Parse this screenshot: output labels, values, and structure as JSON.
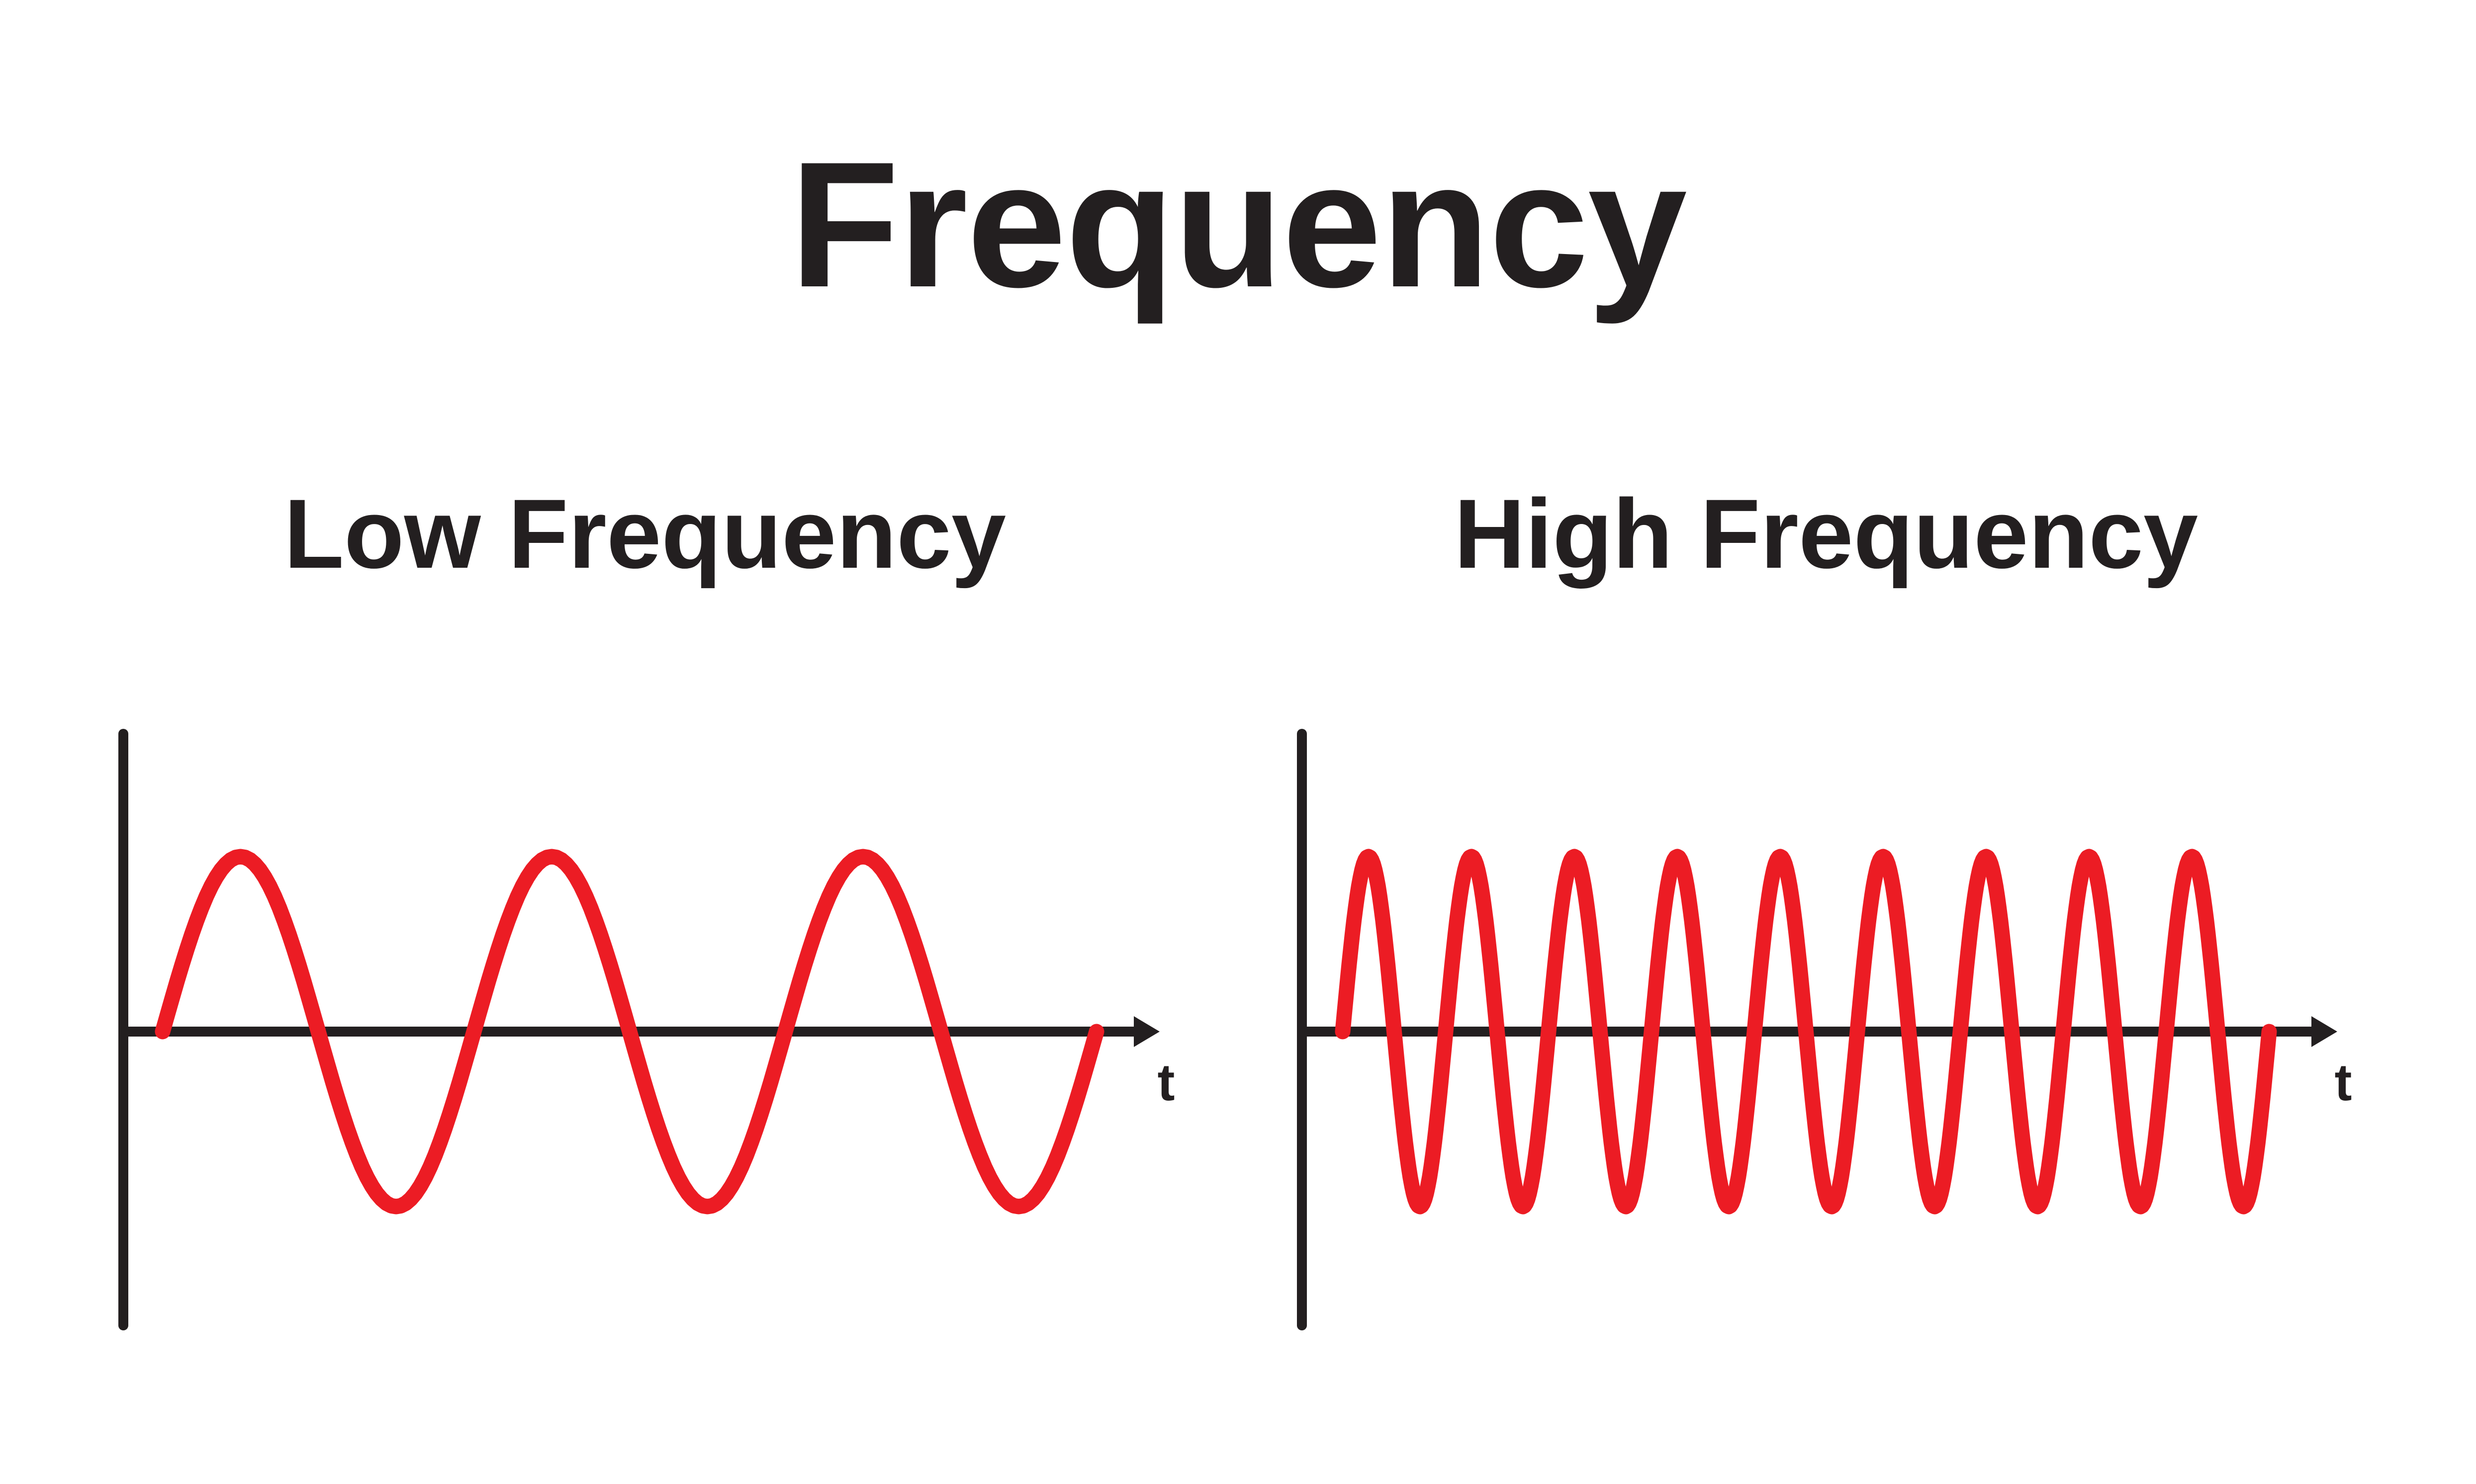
{
  "title": "Frequency",
  "colors": {
    "ink": "#231f20",
    "wave": "#ec1c24",
    "background": "#ffffff"
  },
  "panels": [
    {
      "id": "low",
      "label": "Low Frequency",
      "axis_label": "t",
      "cycles": 3
    },
    {
      "id": "high",
      "label": "High Frequency",
      "axis_label": "t",
      "cycles": 9
    }
  ],
  "chart_data": [
    {
      "type": "line",
      "title": "Low Frequency",
      "xlabel": "t",
      "ylabel": "",
      "grid": false,
      "series": [
        {
          "name": "low-frequency sine wave",
          "function": "sin",
          "cycles": 3,
          "amplitude": 1,
          "phase_start": 0,
          "starts_at_zero_rising": true,
          "ends_at_zero": true
        }
      ]
    },
    {
      "type": "line",
      "title": "High Frequency",
      "xlabel": "t",
      "ylabel": "",
      "grid": false,
      "series": [
        {
          "name": "high-frequency sine wave",
          "function": "sin",
          "cycles": 9,
          "amplitude": 1,
          "phase_start": 0,
          "starts_at_zero_rising": true,
          "ends_at_zero": true
        }
      ]
    }
  ]
}
